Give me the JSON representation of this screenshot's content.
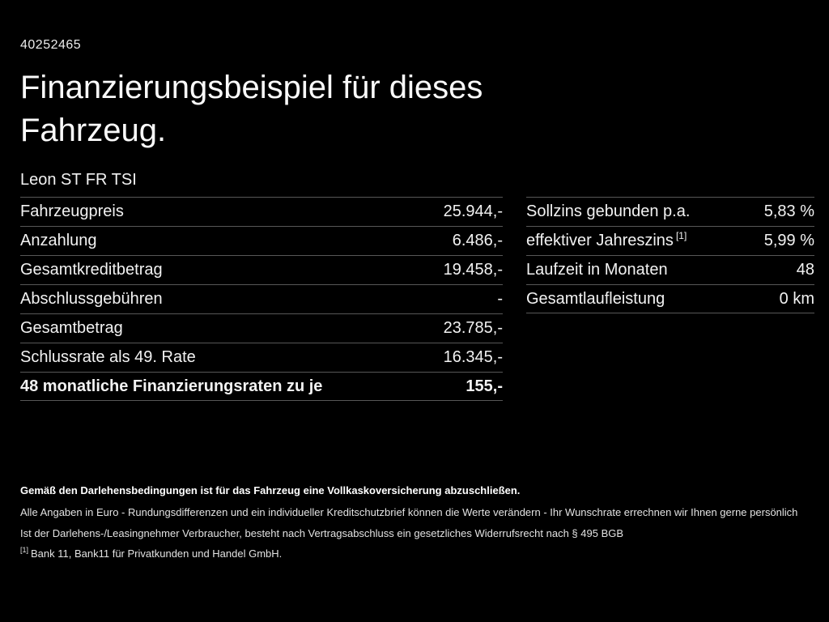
{
  "header": {
    "id": "40252465",
    "title_line1": "Finanzierungsbeispiel für dieses",
    "title_line2": "Fahrzeug.",
    "model": "Leon ST FR TSI"
  },
  "left_table": {
    "rows": [
      {
        "label": "Fahrzeugpreis",
        "value": "25.944,-"
      },
      {
        "label": "Anzahlung",
        "value": "6.486,-"
      },
      {
        "label": "Gesamtkreditbetrag",
        "value": "19.458,-"
      },
      {
        "label": "Abschlussgebühren",
        "value": "-"
      },
      {
        "label": "Gesamtbetrag",
        "value": "23.785,-"
      },
      {
        "label": "Schlussrate als 49. Rate",
        "value": "16.345,-"
      },
      {
        "label": "48 monatliche Finanzierungsraten zu je",
        "value": "155,-"
      }
    ]
  },
  "right_table": {
    "rows": [
      {
        "label": "Sollzins gebunden p.a.",
        "value": "5,83 %"
      },
      {
        "label": "effektiver Jahreszins",
        "sup": "[1]",
        "value": "5,99 %"
      },
      {
        "label": "Laufzeit in Monaten",
        "value": "48"
      },
      {
        "label": "Gesamtlaufleistung",
        "value": "0 km"
      }
    ]
  },
  "footnotes": {
    "insurance": "Gemäß den Darlehensbedingungen ist für das Fahrzeug eine Vollkaskoversicherung abzuschließen.",
    "euro": "Alle Angaben in Euro - Rundungsdifferenzen und ein individueller Kreditschutzbrief können die Werte verändern - Ihr Wunschrate errechnen wir Ihnen gerne persönlich",
    "withdrawal": "Ist der Darlehens-/Leasingnehmer Verbraucher, besteht nach Vertragsabschluss ein gesetzliches Widerrufsrecht nach § 495 BGB",
    "bank_sup": "[1]",
    "bank": "Bank 11, Bank11 für Privatkunden und Handel GmbH."
  }
}
